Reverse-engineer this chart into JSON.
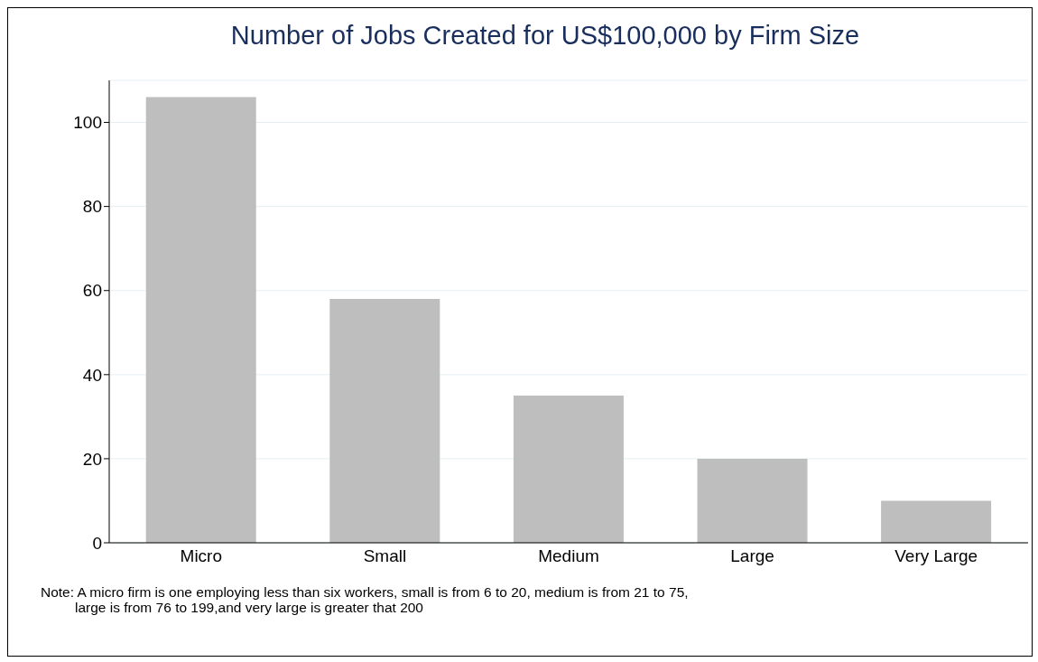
{
  "chart_data": {
    "type": "bar",
    "title": "Number of Jobs Created for US$100,000 by Firm Size",
    "categories": [
      "Micro",
      "Small",
      "Medium",
      "Large",
      "Very Large"
    ],
    "values": [
      106,
      58,
      35,
      20,
      10
    ],
    "color": "#bebebe",
    "ylim": [
      0,
      110
    ],
    "yticks": [
      0,
      20,
      40,
      60,
      80,
      100
    ],
    "grid": "y",
    "legend": false,
    "annotations": [
      "Note: A micro firm is one employing less than six workers, small is from 6 to 20, medium is from 21 to 75,",
      "large is from 76 to 199,and very large is greater that 200"
    ]
  }
}
